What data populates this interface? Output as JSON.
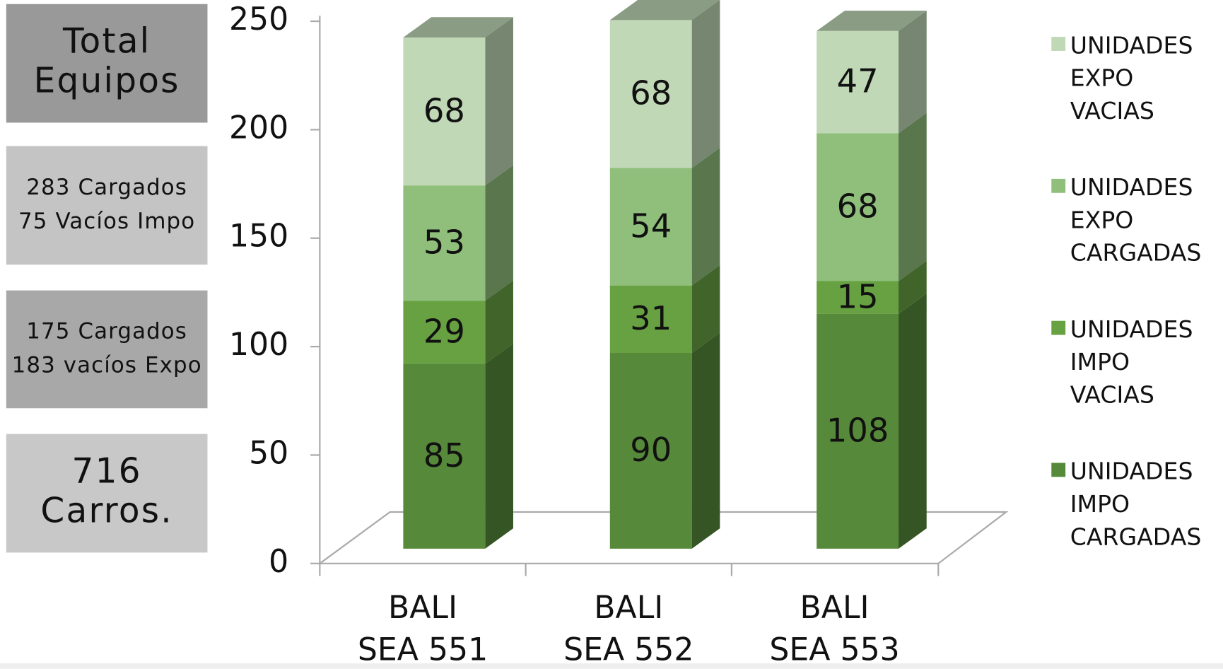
{
  "panels": [
    [
      "Total",
      "Equipos"
    ],
    [
      "283 Cargados",
      "75  Vacíos Impo"
    ],
    [
      "175 Cargados",
      "183 vacíos Expo"
    ],
    [
      "716",
      "Carros."
    ]
  ],
  "chart_data": {
    "type": "bar3d_stacked",
    "categories": [
      "BALI SEA 551",
      "BALI SEA 552",
      "BALI SEA 553"
    ],
    "series": [
      {
        "name": "UNIDADES IMPO CARGADAS",
        "color": "#568a3a",
        "values": [
          85,
          90,
          108
        ]
      },
      {
        "name": "UNIDADES IMPO VACIAS",
        "color": "#67a142",
        "values": [
          29,
          31,
          15
        ]
      },
      {
        "name": "UNIDADES EXPO CARGADAS",
        "color": "#8fbf7a",
        "values": [
          53,
          54,
          68
        ]
      },
      {
        "name": "UNIDADES EXPO VACIAS",
        "color": "#c0d8b6",
        "values": [
          68,
          68,
          47
        ]
      }
    ],
    "ylim": [
      0,
      250
    ],
    "yticks": [
      0,
      50,
      100,
      150,
      200,
      250
    ],
    "legend": "right"
  }
}
